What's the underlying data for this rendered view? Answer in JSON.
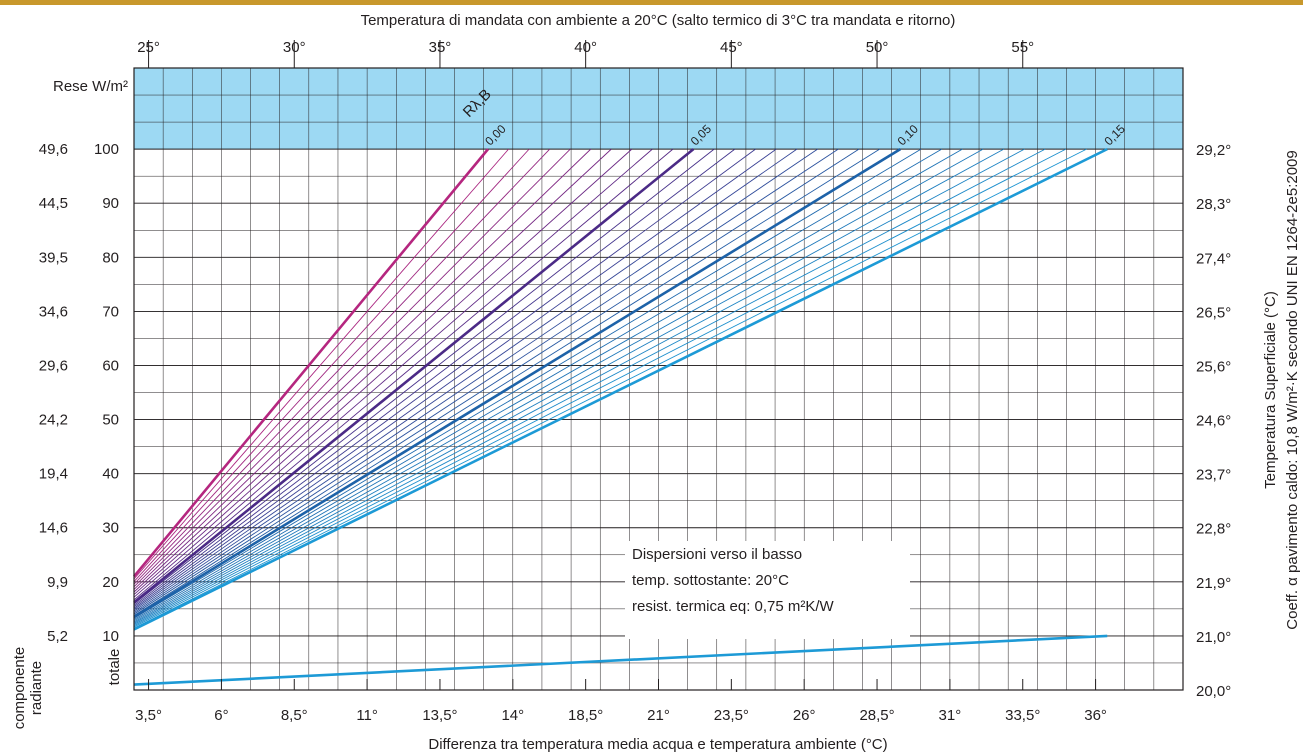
{
  "chart_data": {
    "type": "line",
    "top_axis_title": "Temperatura di mandata con ambiente a 20°C   (salto termico di 3°C tra mandata e ritorno)",
    "top_ticks": [
      "25°",
      "30°",
      "35°",
      "40°",
      "45°",
      "50°",
      "55°"
    ],
    "xlabel": "Differenza tra temperatura media acqua e temperatura ambiente (°C)",
    "x_ticks": [
      "3,5°",
      "6°",
      "8,5°",
      "11°",
      "13,5°",
      "14°",
      "18,5°",
      "21°",
      "23,5°",
      "26°",
      "28,5°",
      "31°",
      "33,5°",
      "36°"
    ],
    "x_range": [
      3,
      39
    ],
    "y_header": "Rese W/m²",
    "y_ticks": [
      "10",
      "20",
      "30",
      "40",
      "50",
      "60",
      "70",
      "80",
      "90",
      "100"
    ],
    "y_range": [
      0,
      115
    ],
    "y_left_values": [
      "5,2",
      "9,9",
      "14,6",
      "19,4",
      "24,2",
      "29,6",
      "34,6",
      "39,5",
      "44,5",
      "49,6"
    ],
    "y_left_labels": [
      "componente",
      "radiante"
    ],
    "y_left_label_total": "totale",
    "y_right_ticks": [
      "20,0°",
      "21,0°",
      "21,9°",
      "22,8°",
      "23,7°",
      "24,6°",
      "25,6°",
      "26,5°",
      "27,4°",
      "28,3°",
      "29,2°"
    ],
    "y_right_label": "Temperatura Superficiale (°C)",
    "coeff_label": "Coeff. α pavimento caldo: 10,8 W/m²·K secondo UNI EN 1264-2e5:2009",
    "rlam_label": "Rλ,B",
    "series": [
      {
        "name": "0,00",
        "color": "#b5267f",
        "x": [
          3,
          15.15
        ],
        "y": [
          21,
          100
        ]
      },
      {
        "name": "0,05",
        "color": "#4b2a86",
        "x": [
          3,
          22.2
        ],
        "y": [
          16.2,
          100
        ]
      },
      {
        "name": "0,10",
        "color": "#1d62a8",
        "x": [
          3,
          29.3
        ],
        "y": [
          13.5,
          100
        ]
      },
      {
        "name": "0,15",
        "color": "#1d9ad6",
        "x": [
          3,
          36.4
        ],
        "y": [
          11.2,
          100
        ]
      }
    ],
    "dispersion_line": {
      "color": "#1d9ad6",
      "x": [
        3,
        36.4
      ],
      "y": [
        1,
        10
      ]
    },
    "annotation": [
      "Dispersioni verso il basso",
      "temp. sottostante: 20°C",
      "resist. termica eq: 0,75 m²K/W"
    ],
    "colors": {
      "band": "#9dd9f3",
      "grid": "#231f20"
    }
  }
}
